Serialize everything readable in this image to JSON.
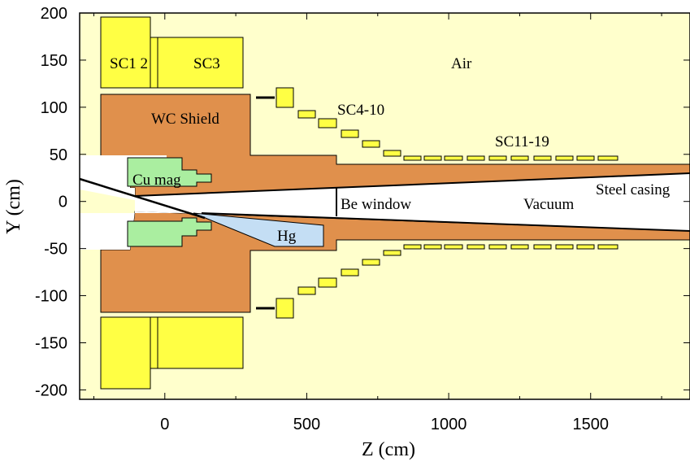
{
  "figure": {
    "xlabel": "Z (cm)",
    "ylabel": "Y (cm)",
    "xlim": [
      -300,
      1850
    ],
    "ylim": [
      -210,
      200
    ],
    "xticks": [
      0,
      500,
      1000,
      1500
    ],
    "yticks": [
      200,
      150,
      100,
      50,
      0,
      -50,
      -100,
      -150,
      -200
    ]
  },
  "labels": {
    "sc12": "SC1 2",
    "sc3": "SC3",
    "air": "Air",
    "sc4_10": "SC4-10",
    "wc_shield": "WC Shield",
    "sc11_19": "SC11-19",
    "cu_mag": "Cu mag",
    "steel_casing": "Steel casing",
    "be_window": "Be window",
    "vacuum": "Vacuum",
    "hg": "Hg"
  },
  "colors": {
    "air": "#ffffcc",
    "coil": "#ffff44",
    "shield": "#e0904c",
    "copper": "#aaeea0",
    "mercury": "#c4def4",
    "vacuum": "#ffffff",
    "outline": "#000000"
  }
}
